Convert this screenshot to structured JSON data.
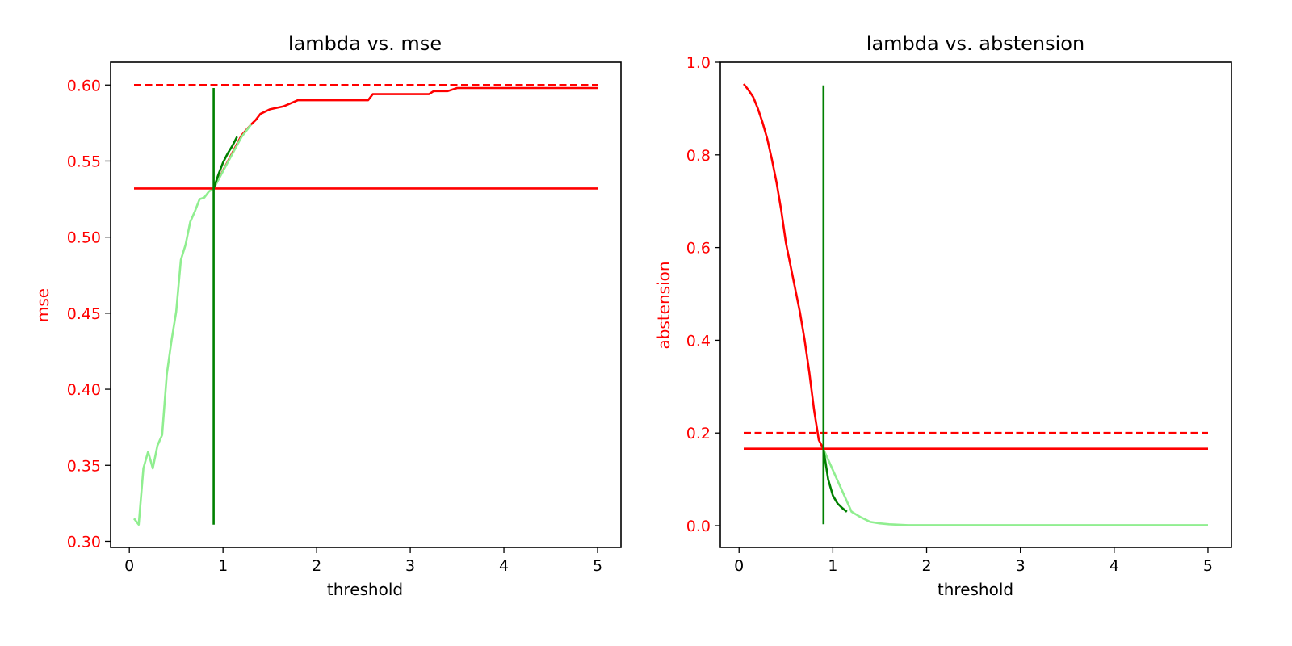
{
  "chart_data": [
    {
      "type": "line",
      "title": "lambda vs. mse",
      "xlabel": "threshold",
      "ylabel": "mse",
      "xlim": [
        -0.2,
        5.25
      ],
      "ylim": [
        0.296,
        0.615
      ],
      "xticks": [
        0,
        1,
        2,
        3,
        4,
        5
      ],
      "yticks": [
        0.3,
        0.35,
        0.4,
        0.45,
        0.5,
        0.55,
        0.6
      ],
      "ytick_decimals": 2,
      "grid": false,
      "colors": {
        "axis_label": "#ff0000",
        "tick_label_y": "#ff0000",
        "red": "#ff0000",
        "dark_green": "#008000",
        "light_green": "#90ee90"
      },
      "series": [
        {
          "color": "#ff0000",
          "style": "solid",
          "x": [
            0.9,
            1.2,
            1.3,
            1.35,
            1.4,
            1.5,
            1.65,
            1.8,
            1.9,
            2.0,
            2.2,
            2.4,
            2.55,
            2.6,
            3.0,
            3.2,
            3.25,
            3.4,
            3.5,
            4.0,
            5.0
          ],
          "y": [
            0.532,
            0.567,
            0.574,
            0.577,
            0.581,
            0.584,
            0.586,
            0.59,
            0.59,
            0.59,
            0.59,
            0.59,
            0.59,
            0.594,
            0.594,
            0.594,
            0.596,
            0.596,
            0.598,
            0.598,
            0.598
          ]
        },
        {
          "color": "#90ee90",
          "style": "solid",
          "x": [
            0.05,
            0.1,
            0.15,
            0.2,
            0.25,
            0.3,
            0.35,
            0.4,
            0.45,
            0.5,
            0.55,
            0.6,
            0.65,
            0.7,
            0.75,
            0.8,
            0.85,
            0.9,
            1.2,
            1.25,
            1.3
          ],
          "y": [
            0.315,
            0.311,
            0.348,
            0.359,
            0.348,
            0.363,
            0.37,
            0.41,
            0.432,
            0.451,
            0.485,
            0.495,
            0.51,
            0.517,
            0.525,
            0.526,
            0.53,
            0.532,
            0.566,
            0.57,
            0.574
          ]
        },
        {
          "color": "#008000",
          "style": "solid",
          "x": [
            0.9,
            0.95,
            1.0,
            1.05,
            1.1,
            1.15
          ],
          "y": [
            0.532,
            0.541,
            0.549,
            0.555,
            0.56,
            0.566
          ]
        },
        {
          "color": "#ff0000",
          "style": "dashed",
          "x": [
            0.05,
            5.0
          ],
          "y": [
            0.6,
            0.6
          ]
        },
        {
          "color": "#ff0000",
          "style": "solid",
          "x": [
            0.05,
            5.0
          ],
          "y": [
            0.532,
            0.532
          ]
        },
        {
          "color": "#008000",
          "style": "solid",
          "x": [
            0.9,
            0.9
          ],
          "y": [
            0.311,
            0.598
          ]
        }
      ]
    },
    {
      "type": "line",
      "title": "lambda vs. abstension",
      "xlabel": "threshold",
      "ylabel": "abstension",
      "xlim": [
        -0.2,
        5.25
      ],
      "ylim": [
        -0.047,
        1.0
      ],
      "xticks": [
        0,
        1,
        2,
        3,
        4,
        5
      ],
      "yticks": [
        0.0,
        0.2,
        0.4,
        0.6,
        0.8,
        1.0
      ],
      "ytick_decimals": 1,
      "grid": false,
      "colors": {
        "axis_label": "#ff0000",
        "tick_label_y": "#ff0000",
        "red": "#ff0000",
        "dark_green": "#008000",
        "light_green": "#90ee90"
      },
      "series": [
        {
          "color": "#ff0000",
          "style": "solid",
          "x": [
            0.05,
            0.1,
            0.15,
            0.2,
            0.25,
            0.3,
            0.35,
            0.4,
            0.45,
            0.5,
            0.55,
            0.6,
            0.65,
            0.7,
            0.75,
            0.8,
            0.85,
            0.9
          ],
          "y": [
            0.953,
            0.94,
            0.925,
            0.9,
            0.87,
            0.835,
            0.79,
            0.74,
            0.68,
            0.61,
            0.56,
            0.51,
            0.46,
            0.4,
            0.33,
            0.25,
            0.185,
            0.165
          ]
        },
        {
          "color": "#90ee90",
          "style": "solid",
          "x": [
            0.9,
            1.2,
            1.3,
            1.4,
            1.5,
            1.6,
            1.8,
            2.0,
            3.0,
            4.0,
            5.0
          ],
          "y": [
            0.165,
            0.03,
            0.018,
            0.008,
            0.005,
            0.003,
            0.001,
            0.001,
            0.001,
            0.001,
            0.001
          ]
        },
        {
          "color": "#008000",
          "style": "solid",
          "x": [
            0.9,
            0.95,
            1.0,
            1.05,
            1.1,
            1.15
          ],
          "y": [
            0.165,
            0.1,
            0.065,
            0.048,
            0.038,
            0.03
          ]
        },
        {
          "color": "#ff0000",
          "style": "dashed",
          "x": [
            0.05,
            5.0
          ],
          "y": [
            0.2,
            0.2
          ]
        },
        {
          "color": "#ff0000",
          "style": "solid",
          "x": [
            0.05,
            5.0
          ],
          "y": [
            0.166,
            0.166
          ]
        },
        {
          "color": "#008000",
          "style": "solid",
          "x": [
            0.9,
            0.9
          ],
          "y": [
            0.003,
            0.95
          ]
        }
      ]
    }
  ]
}
